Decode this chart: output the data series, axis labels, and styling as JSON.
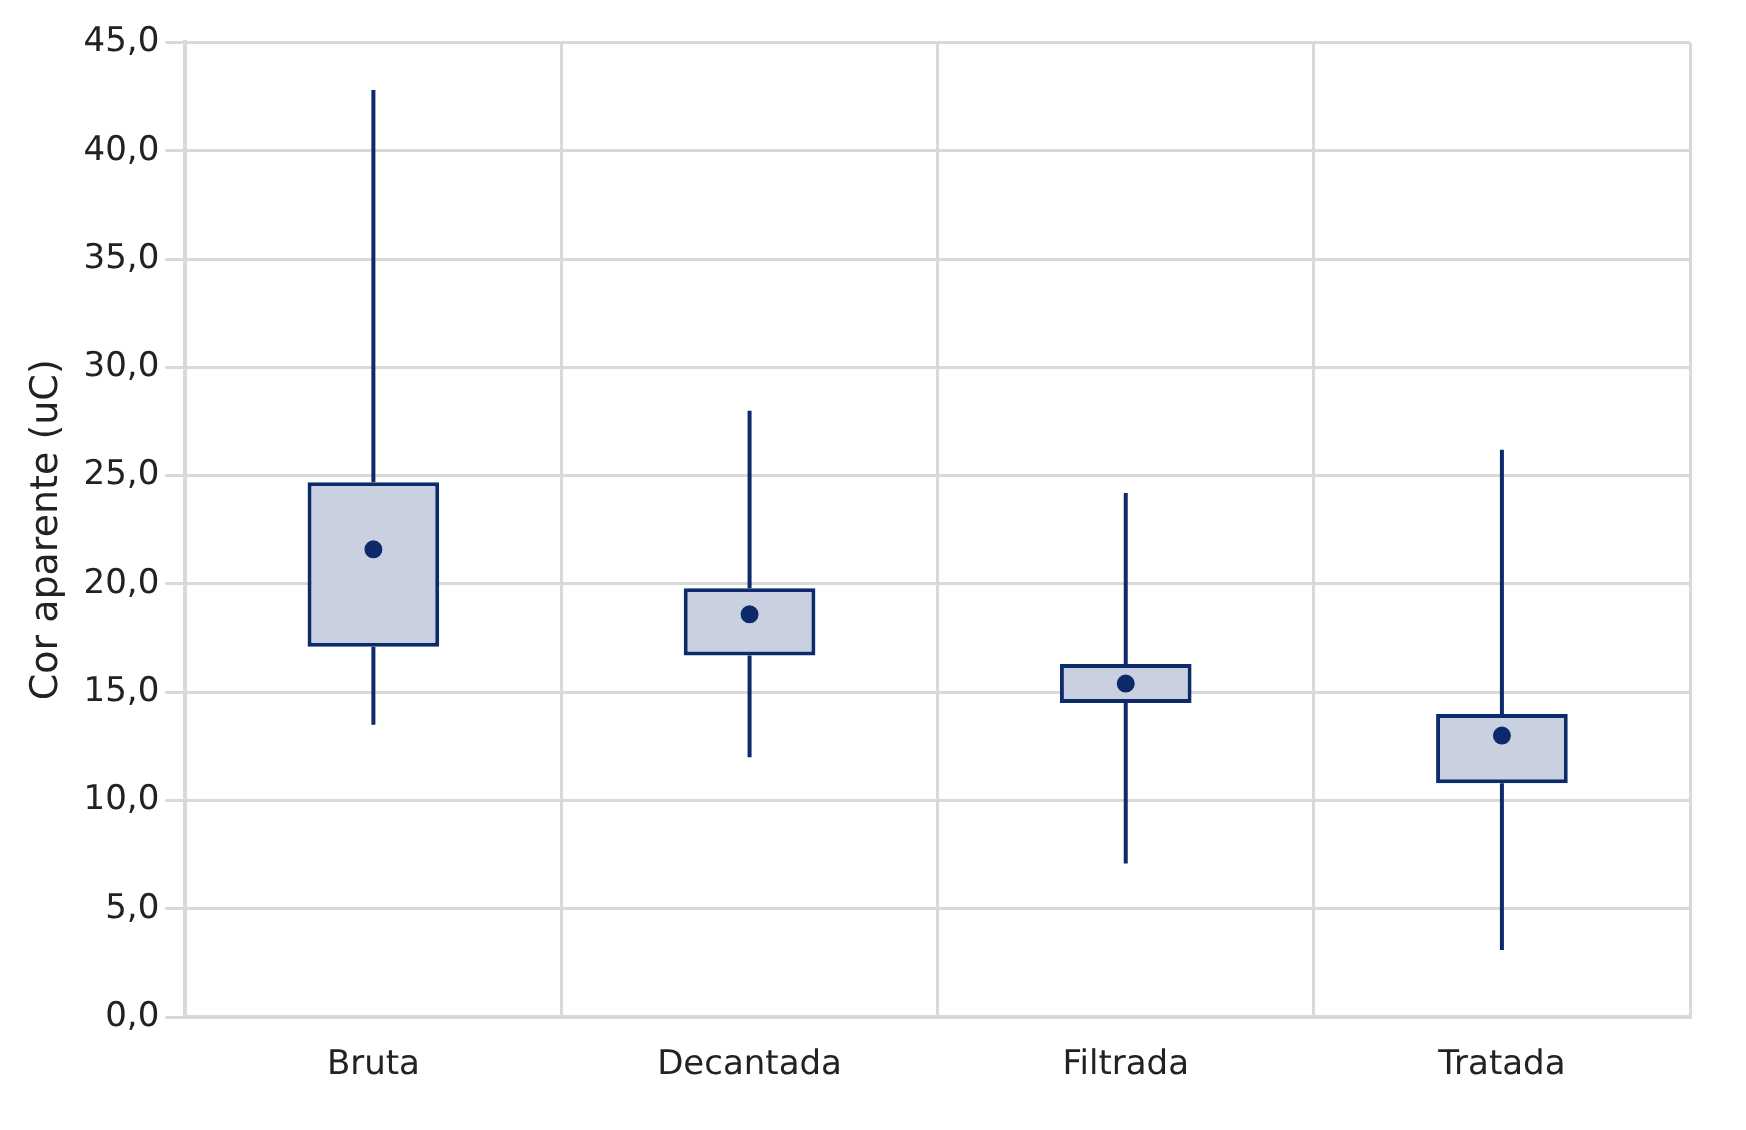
{
  "chart_data": {
    "type": "box",
    "ylabel": "Cor aparente (uC)",
    "categories": [
      "Bruta",
      "Decantada",
      "Filtrada",
      "Tratada"
    ],
    "color": "#0d2a6b",
    "boxes": [
      {
        "low": 13.5,
        "q1": 17.1,
        "q3": 24.7,
        "high": 42.8,
        "mean": 21.6
      },
      {
        "low": 12.0,
        "q1": 16.7,
        "q3": 19.8,
        "high": 28.0,
        "mean": 18.6
      },
      {
        "low": 7.1,
        "q1": 14.5,
        "q3": 16.3,
        "high": 24.2,
        "mean": 15.4
      },
      {
        "low": 3.1,
        "q1": 10.8,
        "q3": 14.0,
        "high": 26.2,
        "mean": 13.0
      }
    ],
    "ylim": [
      0,
      45
    ],
    "yticks": [
      {
        "value": 0,
        "label": "0,0"
      },
      {
        "value": 5,
        "label": "5,0"
      },
      {
        "value": 10,
        "label": "10,0"
      },
      {
        "value": 15,
        "label": "15,0"
      },
      {
        "value": 20,
        "label": "20,0"
      },
      {
        "value": 25,
        "label": "25,0"
      },
      {
        "value": 30,
        "label": "30,0"
      },
      {
        "value": 35,
        "label": "35,0"
      },
      {
        "value": 40,
        "label": "40,0"
      },
      {
        "value": 45,
        "label": "45,0"
      }
    ],
    "grid": true,
    "marker": "circle",
    "legend": false
  }
}
